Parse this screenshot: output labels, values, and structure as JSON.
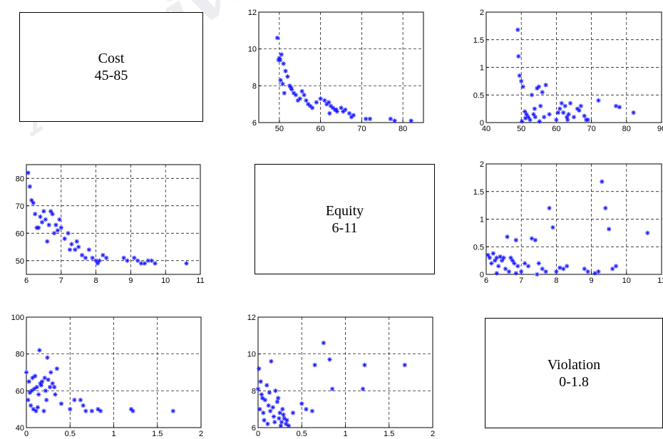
{
  "watermark": "Archive",
  "labels": {
    "cost": {
      "name": "Cost",
      "range": "45-85"
    },
    "equity": {
      "name": "Equity",
      "range": "6-11"
    },
    "violation": {
      "name": "Violation",
      "range": "0-1.8"
    }
  },
  "colors": {
    "marker": "#1a1aff",
    "axis": "#000000",
    "grid": "#000000"
  },
  "chart_data": [
    {
      "id": "equity-vs-cost",
      "type": "scatter",
      "marker": "*",
      "xlim": [
        45,
        85
      ],
      "ylim": [
        6,
        12
      ],
      "grid": true,
      "xticks": [
        "50",
        "60",
        "70",
        "80"
      ],
      "yticks": [
        "6",
        "8",
        "10",
        "12"
      ],
      "x": [
        49.5,
        50,
        50.5,
        50.2,
        51,
        51.5,
        52,
        52.5,
        53,
        53.5,
        54,
        55,
        55.5,
        56,
        57,
        58,
        50.8,
        51.2,
        52.8,
        54.5,
        56.5,
        57.5,
        59,
        60,
        61,
        61.5,
        62,
        62.5,
        63,
        63.5,
        64,
        65,
        66,
        67,
        68,
        62.2,
        63.8,
        65.5,
        67.5,
        71,
        72,
        77,
        78,
        82,
        49.8,
        50.3
      ],
      "y": [
        10.6,
        9.5,
        9.7,
        9.4,
        9.2,
        8.8,
        8.5,
        8.0,
        7.8,
        7.6,
        7.5,
        7.3,
        7.7,
        7.5,
        7.0,
        6.8,
        8.1,
        7.6,
        7.9,
        7.2,
        7.2,
        6.9,
        7.1,
        7.3,
        7.2,
        7.0,
        7.1,
        6.9,
        6.8,
        6.7,
        6.6,
        6.8,
        6.7,
        6.5,
        6.4,
        6.5,
        6.7,
        6.6,
        6.3,
        6.2,
        6.2,
        6.2,
        6.1,
        6.1,
        9.4,
        8.3
      ]
    },
    {
      "id": "violation-vs-cost",
      "type": "scatter",
      "marker": "*",
      "xlim": [
        40,
        90
      ],
      "ylim": [
        0,
        2
      ],
      "grid": true,
      "xticks": [
        "40",
        "50",
        "60",
        "70",
        "80",
        "90"
      ],
      "yticks": [
        "0",
        "0.5",
        "1",
        "1.5",
        "2"
      ],
      "x": [
        49,
        49.2,
        49.5,
        50,
        50.5,
        51,
        51.5,
        52,
        52.5,
        53,
        53.5,
        54,
        54.5,
        55,
        55.5,
        56,
        56.5,
        57,
        58,
        60,
        61,
        61.5,
        62,
        62.5,
        63,
        63.5,
        64,
        65,
        66,
        67,
        68,
        69,
        72,
        77,
        78,
        82,
        50.2,
        51.2,
        53.8,
        55.2,
        60.5,
        63.2,
        66.5,
        68.5
      ],
      "y": [
        1.68,
        1.2,
        0.85,
        0.75,
        0.65,
        0.2,
        0.15,
        0.1,
        0.05,
        0.5,
        0.15,
        0.1,
        0.62,
        0.65,
        0.3,
        0.55,
        0.1,
        0.68,
        0.15,
        0.05,
        0.25,
        0.35,
        0.18,
        0.3,
        0.1,
        0.15,
        0.35,
        0.1,
        0.25,
        0.3,
        0.12,
        0.05,
        0.4,
        0.3,
        0.28,
        0.18,
        0.02,
        0.08,
        0.25,
        0.02,
        0.18,
        0.05,
        0.22,
        0.05
      ]
    },
    {
      "id": "cost-vs-equity",
      "type": "scatter",
      "marker": "*",
      "xlim": [
        6,
        11
      ],
      "ylim": [
        45,
        85
      ],
      "grid": true,
      "xticks": [
        "6",
        "7",
        "8",
        "9",
        "10",
        "11"
      ],
      "yticks": [
        "50",
        "60",
        "70",
        "80"
      ],
      "x": [
        6.05,
        6.1,
        6.15,
        6.2,
        6.25,
        6.3,
        6.35,
        6.4,
        6.45,
        6.5,
        6.55,
        6.6,
        6.65,
        6.7,
        6.75,
        6.8,
        6.85,
        6.9,
        7.0,
        7.1,
        7.2,
        7.3,
        7.4,
        7.5,
        7.6,
        7.7,
        7.8,
        7.9,
        8.0,
        8.1,
        8.2,
        8.3,
        8.8,
        8.9,
        9.1,
        9.2,
        9.3,
        9.4,
        9.5,
        9.6,
        9.7,
        10.6,
        6.95,
        7.25,
        7.45,
        8.05
      ],
      "y": [
        82,
        77,
        72,
        71,
        67,
        62,
        62,
        66,
        64,
        68,
        65,
        57,
        63,
        68,
        67,
        60,
        63,
        61,
        62,
        58,
        60,
        56,
        54,
        55,
        52,
        51,
        54,
        51,
        50,
        50,
        52,
        51,
        51,
        50,
        51,
        50,
        49,
        49,
        50,
        50,
        49,
        49,
        65,
        54,
        57,
        49
      ]
    },
    {
      "id": "violation-vs-equity",
      "type": "scatter",
      "marker": "*",
      "xlim": [
        6,
        11
      ],
      "ylim": [
        0,
        2
      ],
      "grid": true,
      "xticks": [
        "6",
        "7",
        "8",
        "9",
        "10",
        "11"
      ],
      "yticks": [
        "0",
        "0.5",
        "1",
        "1.5",
        "2"
      ],
      "x": [
        6.05,
        6.1,
        6.15,
        6.2,
        6.25,
        6.3,
        6.35,
        6.4,
        6.45,
        6.5,
        6.55,
        6.6,
        6.65,
        6.7,
        6.75,
        6.8,
        6.85,
        6.9,
        7.0,
        7.1,
        7.2,
        7.3,
        7.4,
        7.5,
        7.6,
        7.7,
        7.8,
        7.9,
        8.0,
        8.1,
        8.2,
        8.3,
        8.8,
        8.9,
        9.1,
        9.2,
        9.3,
        9.4,
        9.5,
        9.6,
        9.7,
        10.6,
        6.3,
        6.85,
        7.45
      ],
      "y": [
        0.35,
        0.3,
        0.2,
        0.38,
        0.25,
        0.3,
        0.15,
        0.32,
        0.25,
        0.3,
        0.1,
        0.68,
        0.05,
        0.3,
        0.25,
        0.2,
        0.62,
        0.15,
        0.05,
        0.2,
        0.15,
        0.65,
        0.62,
        0.2,
        0.1,
        0.05,
        1.2,
        0.85,
        0.05,
        0.12,
        0.1,
        0.15,
        0.1,
        0.05,
        0.02,
        0.05,
        1.68,
        1.2,
        0.82,
        0.1,
        0.15,
        0.75,
        0.02,
        0.02,
        0.0
      ]
    },
    {
      "id": "cost-vs-violation",
      "type": "scatter",
      "marker": "*",
      "xlim": [
        0,
        2
      ],
      "ylim": [
        40,
        100
      ],
      "grid": true,
      "xticks": [
        "0",
        "0.5",
        "1",
        "1.5",
        "2"
      ],
      "yticks": [
        "40",
        "60",
        "80",
        "100"
      ],
      "x": [
        0.0,
        0.02,
        0.03,
        0.05,
        0.06,
        0.08,
        0.1,
        0.12,
        0.14,
        0.15,
        0.17,
        0.18,
        0.2,
        0.22,
        0.24,
        0.25,
        0.27,
        0.28,
        0.3,
        0.32,
        0.35,
        0.4,
        0.5,
        0.55,
        0.62,
        0.65,
        0.68,
        0.75,
        0.82,
        0.85,
        1.2,
        1.22,
        1.68,
        0.07,
        0.13,
        0.23,
        0.04,
        0.09,
        0.16,
        0.21,
        0.33,
        0.11
      ],
      "y": [
        70,
        55,
        65,
        52,
        60,
        50,
        68,
        62,
        58,
        82,
        63,
        65,
        49,
        60,
        78,
        66,
        62,
        70,
        64,
        62,
        72,
        53,
        50,
        55,
        55,
        52,
        49,
        49,
        50,
        49,
        50,
        49,
        49,
        67,
        51,
        55,
        59,
        61,
        64,
        67,
        58,
        49
      ]
    },
    {
      "id": "equity-vs-violation",
      "type": "scatter",
      "marker": "*",
      "xlim": [
        0,
        2
      ],
      "ylim": [
        6,
        12
      ],
      "grid": true,
      "xticks": [
        "0",
        "0.5",
        "1",
        "1.5",
        "2"
      ],
      "yticks": [
        "6",
        "8",
        "10",
        "12"
      ],
      "x": [
        0.0,
        0.01,
        0.02,
        0.03,
        0.05,
        0.06,
        0.08,
        0.1,
        0.12,
        0.14,
        0.15,
        0.17,
        0.18,
        0.2,
        0.22,
        0.24,
        0.25,
        0.27,
        0.28,
        0.3,
        0.32,
        0.35,
        0.4,
        0.5,
        0.55,
        0.62,
        0.65,
        0.75,
        0.82,
        0.85,
        1.2,
        1.22,
        1.68,
        0.04,
        0.07,
        0.11,
        0.13,
        0.19,
        0.23,
        0.26,
        0.29,
        0.33
      ],
      "y": [
        8.1,
        9.2,
        7.0,
        8.5,
        7.6,
        6.8,
        7.5,
        8.3,
        7.2,
        6.9,
        9.6,
        7.1,
        6.6,
        8.0,
        7.4,
        6.5,
        6.8,
        6.3,
        7.0,
        6.5,
        6.2,
        6.1,
        6.8,
        7.3,
        7.0,
        6.9,
        9.4,
        10.6,
        9.7,
        8.1,
        8.1,
        9.4,
        9.4,
        7.8,
        6.4,
        6.2,
        7.9,
        6.3,
        7.6,
        6.1,
        6.7,
        6.4
      ]
    }
  ]
}
